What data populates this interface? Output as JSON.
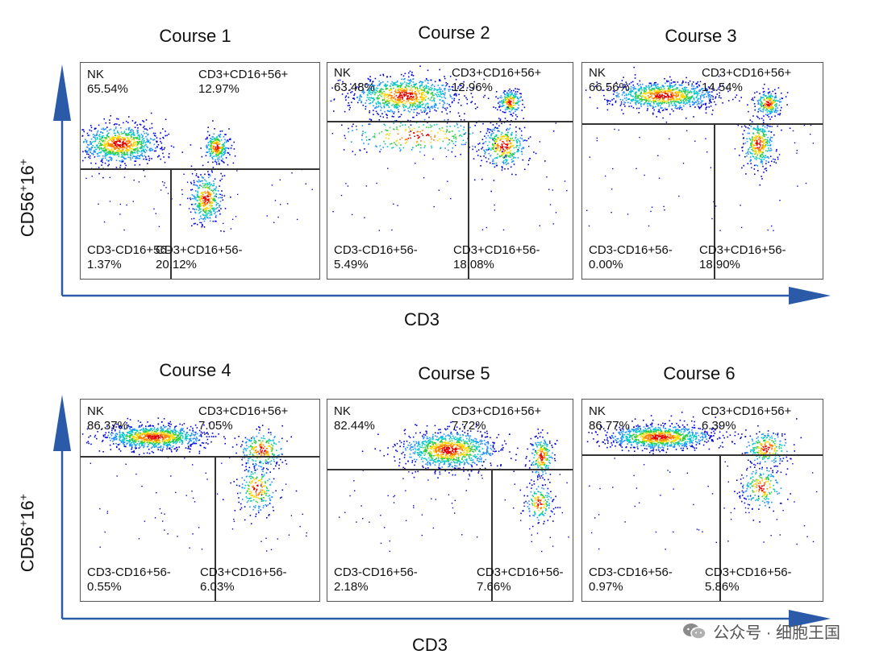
{
  "chart_data": {
    "type": "scatter",
    "x_axis_label": "CD3",
    "y_axis_label": "CD56+16+",
    "panels": [
      {
        "title": "Course 1",
        "quadrants": {
          "upper_left": {
            "name": "NK",
            "value": "65.54%"
          },
          "upper_right": {
            "name": "CD3+CD16+56+",
            "value": "12.97%"
          },
          "lower_left": {
            "name": "CD3-CD16+56-",
            "value": "1.37%"
          },
          "lower_right": {
            "name": "CD3+CD16+56-",
            "value": "20.12%"
          }
        }
      },
      {
        "title": "Course 2",
        "quadrants": {
          "upper_left": {
            "name": "NK",
            "value": "63.48%"
          },
          "upper_right": {
            "name": "CD3+CD16+56+",
            "value": "12.96%"
          },
          "lower_left": {
            "name": "CD3-CD16+56-",
            "value": "5.49%"
          },
          "lower_right": {
            "name": "CD3+CD16+56-",
            "value": "18.08%"
          }
        }
      },
      {
        "title": "Course 3",
        "quadrants": {
          "upper_left": {
            "name": "NK",
            "value": "66.56%"
          },
          "upper_right": {
            "name": "CD3+CD16+56+",
            "value": "14.54%"
          },
          "lower_left": {
            "name": "CD3-CD16+56-",
            "value": "0.00%"
          },
          "lower_right": {
            "name": "CD3+CD16+56-",
            "value": "18.90%"
          }
        }
      },
      {
        "title": "Course 4",
        "quadrants": {
          "upper_left": {
            "name": "NK",
            "value": "86.37%"
          },
          "upper_right": {
            "name": "CD3+CD16+56+",
            "value": "7.05%"
          },
          "lower_left": {
            "name": "CD3-CD16+56-",
            "value": "0.55%"
          },
          "lower_right": {
            "name": "CD3+CD16+56-",
            "value": "6.03%"
          }
        }
      },
      {
        "title": "Course 5",
        "quadrants": {
          "upper_left": {
            "name": "NK",
            "value": "82.44%"
          },
          "upper_right": {
            "name": "CD3+CD16+56+",
            "value": "7.72%"
          },
          "lower_left": {
            "name": "CD3-CD16+56-",
            "value": "2.18%"
          },
          "lower_right": {
            "name": "CD3+CD16+56-",
            "value": "7.66%"
          }
        }
      },
      {
        "title": "Course 6",
        "quadrants": {
          "upper_left": {
            "name": "NK",
            "value": "86.77%"
          },
          "upper_right": {
            "name": "CD3+CD16+56+",
            "value": "6.39%"
          },
          "lower_left": {
            "name": "CD3-CD16+56-",
            "value": "0.97%"
          },
          "lower_right": {
            "name": "CD3+CD16+56-",
            "value": "5.86%"
          }
        }
      }
    ],
    "density_colors": [
      "#0000dd",
      "#1e90ff",
      "#00c8c8",
      "#2ecc40",
      "#ffd700",
      "#ff7f00",
      "#e00000"
    ]
  },
  "labels": {
    "y_axis_main": "CD56",
    "y_axis_sup": "+",
    "y_axis_main2": "16",
    "y_axis_sup2": "+",
    "x_axis": "CD3"
  },
  "watermark": {
    "text": "公众号 · 细胞王国",
    "icon": "wechat-icon"
  }
}
